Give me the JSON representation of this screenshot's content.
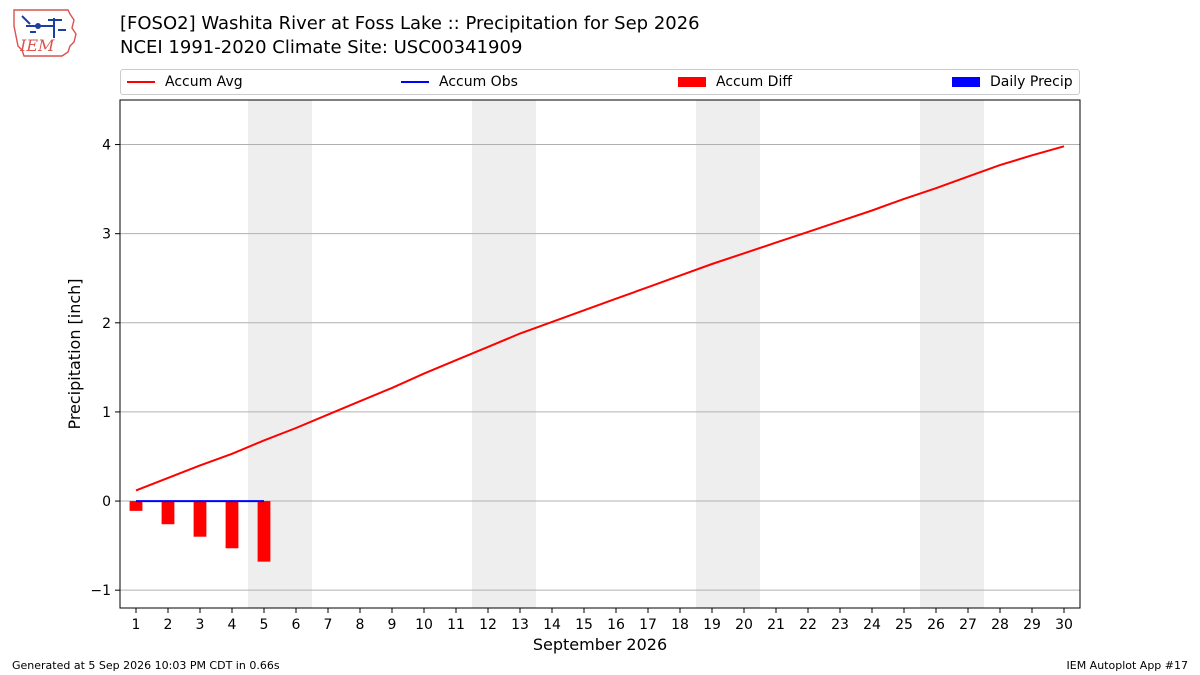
{
  "header": {
    "logo_text": "IEM",
    "title_line1": "[FOSO2] Washita River at Foss Lake :: Precipitation for Sep 2026",
    "title_line2": "NCEI 1991-2020 Climate Site: USC00341909"
  },
  "legend": {
    "placement": "top",
    "items": [
      {
        "label": "Accum Avg",
        "kind": "line",
        "color": "#ff0000"
      },
      {
        "label": "Accum Obs",
        "kind": "line",
        "color": "#0000ff"
      },
      {
        "label": "Accum Diff",
        "kind": "patch",
        "color": "#ff0000"
      },
      {
        "label": "Daily Precip",
        "kind": "patch",
        "color": "#0000ff"
      }
    ]
  },
  "chart_data": {
    "type": "line",
    "xlabel": "September 2026",
    "ylabel": "Precipitation [inch]",
    "xlim": [
      0.5,
      30.5
    ],
    "ylim": [
      -1.2,
      4.5
    ],
    "x_ticks": [
      1,
      2,
      3,
      4,
      5,
      6,
      7,
      8,
      9,
      10,
      11,
      12,
      13,
      14,
      15,
      16,
      17,
      18,
      19,
      20,
      21,
      22,
      23,
      24,
      25,
      26,
      27,
      28,
      29,
      30
    ],
    "x_tick_labels": [
      "1",
      "2",
      "3",
      "4",
      "5",
      "6",
      "7",
      "8",
      "9",
      "10",
      "11",
      "12",
      "13",
      "14",
      "15",
      "16",
      "17",
      "18",
      "19",
      "20",
      "21",
      "22",
      "23",
      "24",
      "25",
      "26",
      "27",
      "28",
      "29",
      "30"
    ],
    "y_ticks": [
      -1,
      0,
      1,
      2,
      3,
      4
    ],
    "y_tick_labels": [
      "−1",
      "0",
      "1",
      "2",
      "3",
      "4"
    ],
    "grid": "horizontal",
    "weekend_bands": [
      [
        4.5,
        6.5
      ],
      [
        11.5,
        13.5
      ],
      [
        18.5,
        20.5
      ],
      [
        25.5,
        27.5
      ]
    ],
    "series": [
      {
        "name": "Accum Avg",
        "kind": "line",
        "color": "#ff0000",
        "x": [
          1,
          2,
          3,
          4,
          5,
          6,
          7,
          8,
          9,
          10,
          11,
          12,
          13,
          14,
          15,
          16,
          17,
          18,
          19,
          20,
          21,
          22,
          23,
          24,
          25,
          26,
          27,
          28,
          29,
          30
        ],
        "values": [
          0.12,
          0.26,
          0.4,
          0.53,
          0.68,
          0.82,
          0.97,
          1.12,
          1.27,
          1.43,
          1.58,
          1.73,
          1.88,
          2.01,
          2.14,
          2.27,
          2.4,
          2.53,
          2.66,
          2.78,
          2.9,
          3.02,
          3.14,
          3.26,
          3.39,
          3.51,
          3.64,
          3.77,
          3.88,
          3.98
        ]
      },
      {
        "name": "Accum Obs",
        "kind": "line",
        "color": "#0000ff",
        "x": [
          1,
          2,
          3,
          4,
          5
        ],
        "values": [
          0,
          0,
          0,
          0,
          0
        ]
      },
      {
        "name": "Accum Diff",
        "kind": "bar",
        "color": "#ff0000",
        "x": [
          1,
          2,
          3,
          4,
          5
        ],
        "values": [
          -0.11,
          -0.26,
          -0.4,
          -0.53,
          -0.68
        ]
      },
      {
        "name": "Daily Precip",
        "kind": "bar",
        "color": "#0000ff",
        "x": [
          1,
          2,
          3,
          4,
          5
        ],
        "values": [
          0,
          0,
          0,
          0,
          0
        ]
      }
    ]
  },
  "footer": {
    "left": "Generated at 5 Sep 2026 10:03 PM CDT in 0.66s",
    "right": "IEM Autoplot App #17"
  }
}
